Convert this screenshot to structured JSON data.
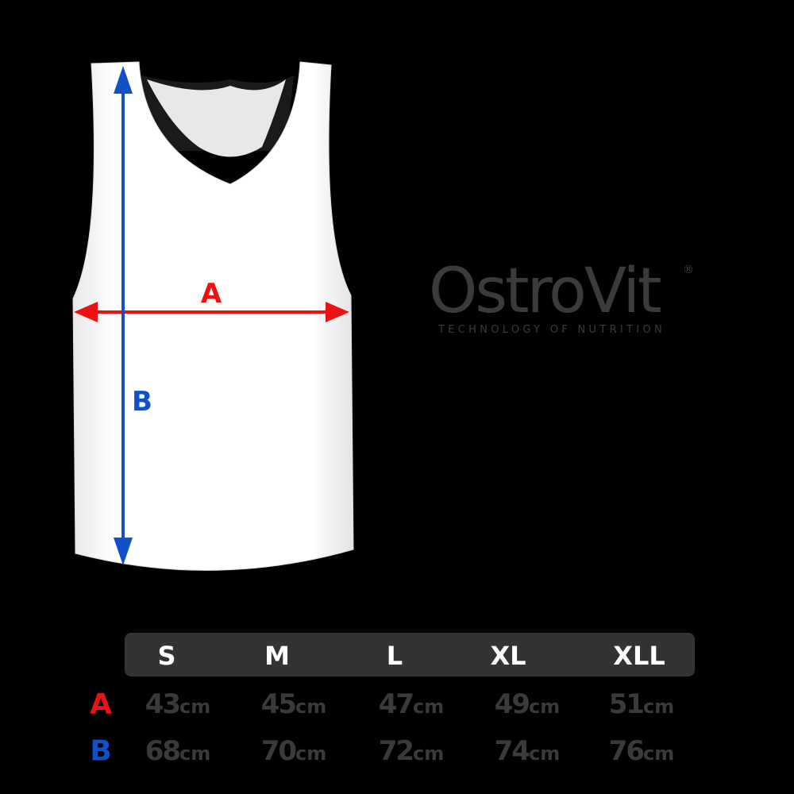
{
  "measure_labels": {
    "a": "A",
    "b": "B"
  },
  "colors": {
    "a": "#ee1111",
    "b": "#1050c8",
    "header_bg": "#333333",
    "values": "#3a3a3a"
  },
  "logo": {
    "name": "OstroVit",
    "registered": "®",
    "tagline": "TECHNOLOGY OF NUTRITION"
  },
  "table": {
    "sizes": [
      "S",
      "M",
      "L",
      "XL",
      "XLL"
    ],
    "rows": [
      {
        "label": "A",
        "values": [
          "43",
          "45",
          "47",
          "49",
          "51"
        ],
        "unit": "cm"
      },
      {
        "label": "B",
        "values": [
          "68",
          "70",
          "72",
          "74",
          "76"
        ],
        "unit": "cm"
      }
    ]
  }
}
